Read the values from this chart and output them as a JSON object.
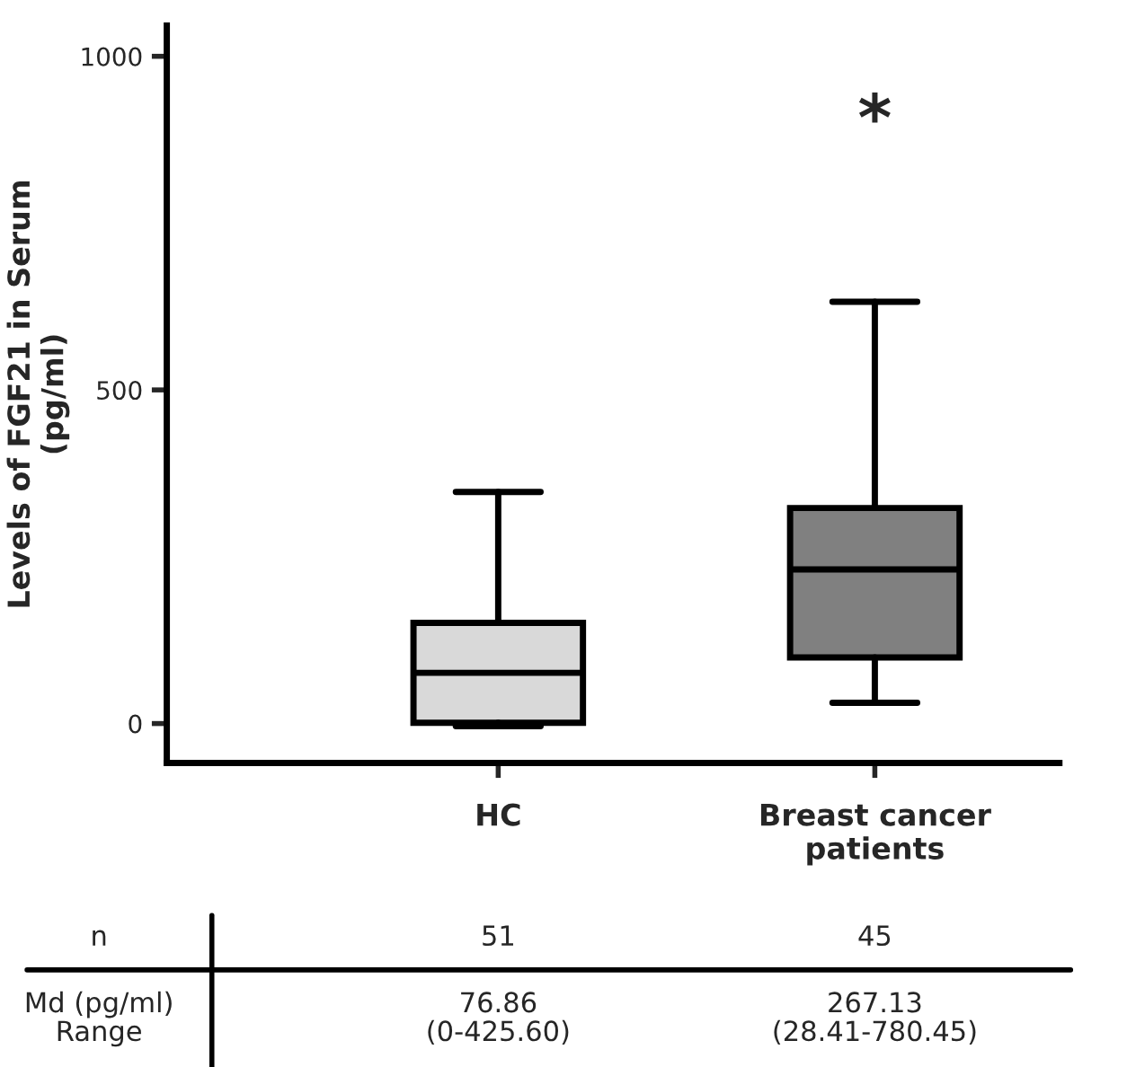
{
  "chart_data": {
    "type": "box",
    "ylabel": "Levels of FGF21 in Serum\n(pg/ml)",
    "categories": [
      "HC",
      "Breast cancer\npatients"
    ],
    "boxes": [
      {
        "low": -4,
        "q1": 1,
        "median": 76,
        "q3": 151,
        "high": 347
      },
      {
        "low": 31,
        "q1": 99,
        "median": 231,
        "q3": 323,
        "high": 632
      }
    ],
    "colors": [
      "#d9d9d9",
      "#808080"
    ],
    "ylim": [
      -59,
      1046
    ],
    "yticks": [
      0,
      500,
      1000
    ],
    "grid": false,
    "annotations": [
      "*",
      "n",
      "51",
      "45",
      "Md (pg/ml)\nRange",
      "76.86\n(0-425.60)",
      "267.13\n(28.41-780.45)"
    ]
  }
}
